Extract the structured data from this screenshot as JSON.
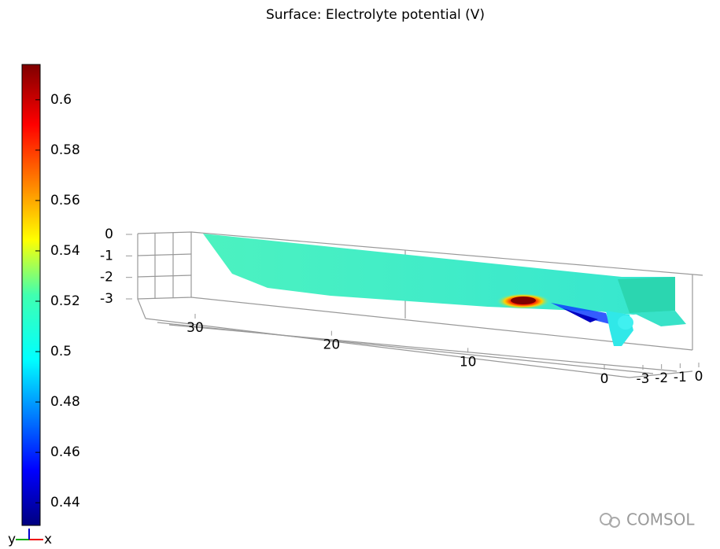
{
  "chart_data": {
    "type": "surface3d",
    "title": "Surface: Electrolyte potential (V)",
    "colorbar": {
      "lim": [
        0.431,
        0.614
      ],
      "ticks": [
        0.44,
        0.46,
        0.48,
        0.5,
        0.52,
        0.54,
        0.56,
        0.58,
        0.6
      ],
      "colormap": "rainbow"
    },
    "xlim": [
      0,
      30
    ],
    "xticks": [
      30,
      20,
      10,
      0
    ],
    "ylim": [
      -3,
      0
    ],
    "yticks": [
      -3,
      -2,
      -1,
      0
    ],
    "zlim": [
      -3,
      0
    ],
    "zticks": [
      0,
      -1,
      -2,
      -3
    ],
    "triad": {
      "x": "x",
      "y": "y"
    },
    "watermark": "COMSOL"
  }
}
